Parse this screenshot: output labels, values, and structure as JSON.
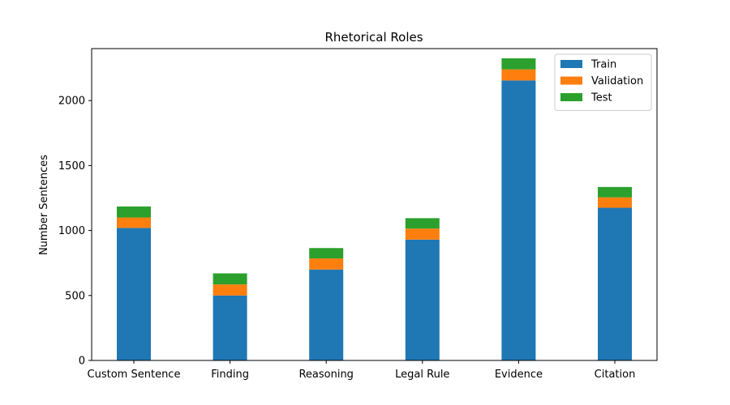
{
  "chart_data": {
    "type": "bar",
    "stacked": true,
    "title": "Rhetorical Roles",
    "xlabel": "",
    "ylabel": "Number Sentences",
    "ylim": [
      0,
      2400
    ],
    "yticks": [
      0,
      500,
      1000,
      1500,
      2000
    ],
    "grid": false,
    "legend_position": "top-right",
    "categories": [
      "Custom Sentence",
      "Finding",
      "Reasoning",
      "Legal Rule",
      "Evidence",
      "Citation"
    ],
    "series": [
      {
        "name": "Train",
        "color": "#1f77b4",
        "values": [
          1020,
          500,
          700,
          930,
          2155,
          1175
        ]
      },
      {
        "name": "Validation",
        "color": "#ff7f0e",
        "values": [
          80,
          85,
          85,
          85,
          85,
          80
        ]
      },
      {
        "name": "Test",
        "color": "#2ca02c",
        "values": [
          85,
          85,
          80,
          80,
          85,
          80
        ]
      }
    ]
  }
}
